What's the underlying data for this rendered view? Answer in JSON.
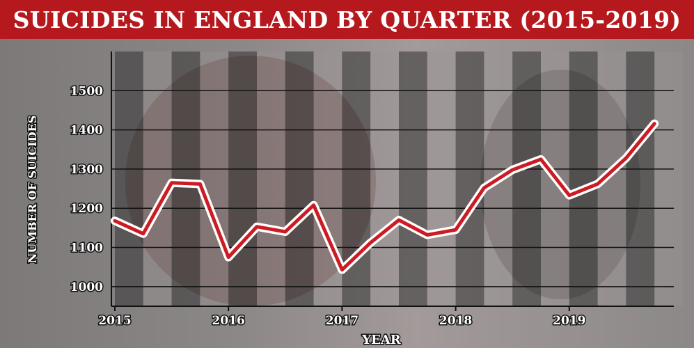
{
  "title": "SUICIDES IN ENGLAND BY QUARTER (2015-2019)",
  "colors": {
    "title_bg": "#b5191e",
    "line": "#cc1b22",
    "line_halo": "#ffffff",
    "dark_band": "#333333",
    "grid": "#111111"
  },
  "chart_data": {
    "type": "line",
    "title": "SUICIDES IN ENGLAND BY QUARTER (2015-2019)",
    "xlabel": "YEAR",
    "ylabel": "NUMBER OF SUICIDES",
    "year_ticks": [
      "2015",
      "2016",
      "2017",
      "2018",
      "2019"
    ],
    "y_ticks": [
      1000,
      1100,
      1200,
      1300,
      1400,
      1500
    ],
    "ylim": [
      950,
      1600
    ],
    "grid": true,
    "series": [
      {
        "x": [
          "2015 Q1",
          "2015 Q2",
          "2015 Q3",
          "2015 Q4",
          "2016 Q1",
          "2016 Q2",
          "2016 Q3",
          "2016 Q4",
          "2017 Q1",
          "2017 Q2",
          "2017 Q3",
          "2017 Q4",
          "2018 Q1",
          "2018 Q2",
          "2018 Q3",
          "2018 Q4",
          "2019 Q1",
          "2019 Q2",
          "2019 Q3",
          "2019 Q4"
        ],
        "values": [
          1168,
          1135,
          1265,
          1262,
          1075,
          1153,
          1140,
          1208,
          1043,
          1112,
          1170,
          1132,
          1145,
          1252,
          1298,
          1325,
          1233,
          1262,
          1328,
          1416
        ]
      }
    ]
  }
}
